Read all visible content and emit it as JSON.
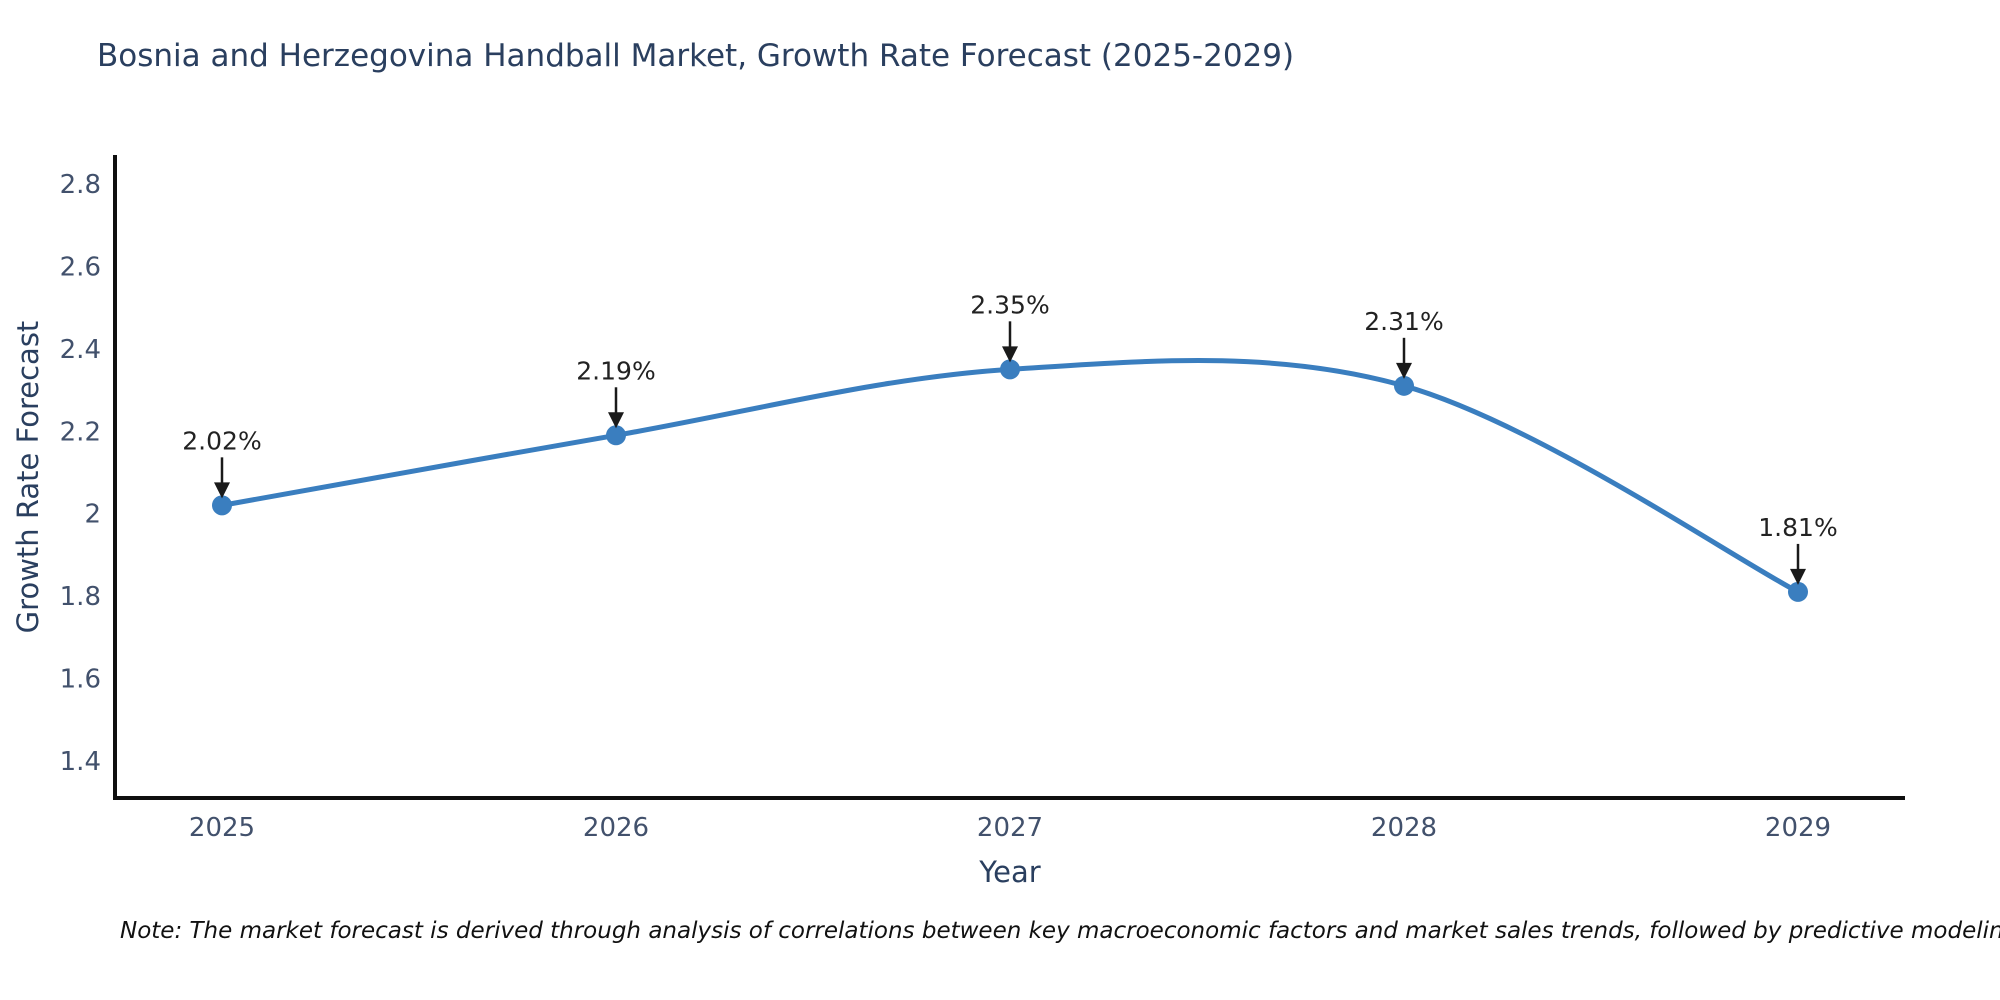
{
  "title": "Bosnia and Herzegovina Handball Market, Growth Rate Forecast (2025-2029)",
  "note": "Note: The market forecast is derived through analysis of correlations between key macroeconomic factors and market sales trends, followed by predictive modeling to project future sales",
  "chart_data": {
    "type": "line",
    "line_shape": "spline",
    "title": "Bosnia and Herzegovina Handball Market, Growth Rate Forecast (2025-2029)",
    "xlabel": "Year",
    "ylabel": "Growth Rate Forecast",
    "x": [
      2025,
      2026,
      2027,
      2028,
      2029
    ],
    "series": [
      {
        "name": "Growth Rate Forecast",
        "values": [
          2.02,
          2.19,
          2.35,
          2.31,
          1.81
        ]
      }
    ],
    "point_labels": [
      "2.02%",
      "2.19%",
      "2.35%",
      "2.31%",
      "1.81%"
    ],
    "xtick_labels": [
      "2025",
      "2026",
      "2027",
      "2028",
      "2029"
    ],
    "ytick_values": [
      1.4,
      1.6,
      1.8,
      2,
      2.2,
      2.4,
      2.6,
      2.8
    ],
    "ytick_labels": [
      "1.4",
      "1.6",
      "1.8",
      "2",
      "2.2",
      "2.4",
      "2.6",
      "2.8"
    ],
    "ylim": [
      1.31,
      2.87
    ],
    "grid": false,
    "legend_position": "none",
    "colors": {
      "line": "#3a7ebf",
      "marker": "#3a7ebf",
      "annotation_text": "#222222",
      "annotation_arrow": "#1a1a1a",
      "axis_line": "#0f0f0f",
      "tick_label": "#42516c",
      "title": "#2a3f5f",
      "axis_title": "#2a3f5f",
      "note_text": "#111111",
      "background": "#ffffff"
    }
  }
}
